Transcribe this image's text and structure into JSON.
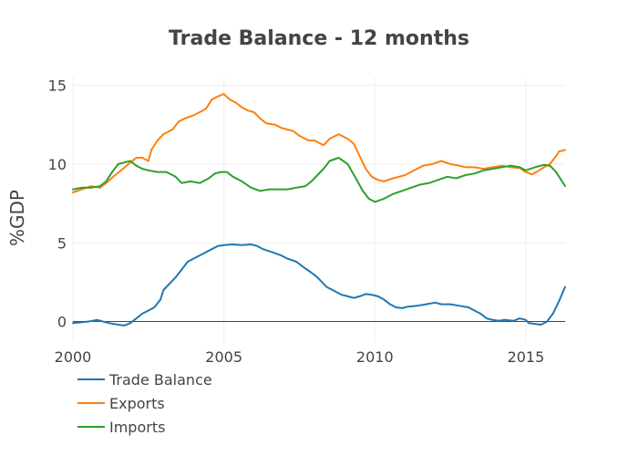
{
  "chart_data": {
    "type": "line",
    "title": "Trade Balance - 12 months",
    "xlabel": "",
    "ylabel": "%GDP",
    "xlim": [
      2000,
      2016.3
    ],
    "ylim": [
      -1.3,
      15.5
    ],
    "x_ticks": [
      2000,
      2005,
      2010,
      2015
    ],
    "x_tick_labels": [
      "2000",
      "2005",
      "2010",
      "2015"
    ],
    "y_ticks": [
      0,
      5,
      10,
      15
    ],
    "y_tick_labels": [
      "0",
      "5",
      "10",
      "15"
    ],
    "grid": true,
    "zero_line": true,
    "legend_position": "bottom-left",
    "series": [
      {
        "name": "Trade Balance",
        "color": "#1f77b4",
        "points": [
          [
            2000.0,
            -0.1
          ],
          [
            2000.5,
            0.0
          ],
          [
            2000.8,
            0.1
          ],
          [
            2001.2,
            -0.1
          ],
          [
            2001.5,
            -0.2
          ],
          [
            2001.7,
            -0.25
          ],
          [
            2001.9,
            -0.1
          ],
          [
            2002.1,
            0.2
          ],
          [
            2002.3,
            0.5
          ],
          [
            2002.5,
            0.7
          ],
          [
            2002.7,
            0.9
          ],
          [
            2002.9,
            1.4
          ],
          [
            2003.0,
            2.0
          ],
          [
            2003.2,
            2.4
          ],
          [
            2003.4,
            2.8
          ],
          [
            2003.6,
            3.3
          ],
          [
            2003.8,
            3.8
          ],
          [
            2004.0,
            4.0
          ],
          [
            2004.2,
            4.2
          ],
          [
            2004.4,
            4.4
          ],
          [
            2004.6,
            4.6
          ],
          [
            2004.8,
            4.8
          ],
          [
            2005.0,
            4.85
          ],
          [
            2005.3,
            4.9
          ],
          [
            2005.6,
            4.85
          ],
          [
            2005.9,
            4.9
          ],
          [
            2006.1,
            4.8
          ],
          [
            2006.3,
            4.6
          ],
          [
            2006.6,
            4.4
          ],
          [
            2006.9,
            4.2
          ],
          [
            2007.1,
            4.0
          ],
          [
            2007.4,
            3.8
          ],
          [
            2007.6,
            3.5
          ],
          [
            2007.9,
            3.1
          ],
          [
            2008.1,
            2.8
          ],
          [
            2008.4,
            2.2
          ],
          [
            2008.6,
            2.0
          ],
          [
            2008.9,
            1.7
          ],
          [
            2009.1,
            1.6
          ],
          [
            2009.3,
            1.5
          ],
          [
            2009.5,
            1.6
          ],
          [
            2009.7,
            1.75
          ],
          [
            2009.9,
            1.7
          ],
          [
            2010.1,
            1.6
          ],
          [
            2010.3,
            1.4
          ],
          [
            2010.5,
            1.1
          ],
          [
            2010.7,
            0.9
          ],
          [
            2010.9,
            0.85
          ],
          [
            2011.1,
            0.95
          ],
          [
            2011.4,
            1.0
          ],
          [
            2011.7,
            1.1
          ],
          [
            2012.0,
            1.2
          ],
          [
            2012.2,
            1.1
          ],
          [
            2012.5,
            1.1
          ],
          [
            2012.8,
            1.0
          ],
          [
            2013.1,
            0.9
          ],
          [
            2013.3,
            0.7
          ],
          [
            2013.5,
            0.5
          ],
          [
            2013.7,
            0.2
          ],
          [
            2013.9,
            0.1
          ],
          [
            2014.1,
            0.05
          ],
          [
            2014.3,
            0.1
          ],
          [
            2014.6,
            0.05
          ],
          [
            2014.8,
            0.2
          ],
          [
            2015.0,
            0.1
          ],
          [
            2015.1,
            -0.1
          ],
          [
            2015.3,
            -0.15
          ],
          [
            2015.5,
            -0.2
          ],
          [
            2015.7,
            0.0
          ],
          [
            2015.9,
            0.5
          ],
          [
            2016.1,
            1.3
          ],
          [
            2016.3,
            2.2
          ]
        ]
      },
      {
        "name": "Exports",
        "color": "#ff7f0e",
        "points": [
          [
            2000.0,
            8.2
          ],
          [
            2000.3,
            8.4
          ],
          [
            2000.6,
            8.6
          ],
          [
            2000.9,
            8.5
          ],
          [
            2001.1,
            8.8
          ],
          [
            2001.4,
            9.3
          ],
          [
            2001.6,
            9.6
          ],
          [
            2001.9,
            10.1
          ],
          [
            2002.1,
            10.4
          ],
          [
            2002.3,
            10.4
          ],
          [
            2002.5,
            10.2
          ],
          [
            2002.6,
            10.9
          ],
          [
            2002.8,
            11.5
          ],
          [
            2003.0,
            11.9
          ],
          [
            2003.3,
            12.2
          ],
          [
            2003.5,
            12.7
          ],
          [
            2003.7,
            12.9
          ],
          [
            2004.0,
            13.1
          ],
          [
            2004.2,
            13.3
          ],
          [
            2004.4,
            13.5
          ],
          [
            2004.6,
            14.1
          ],
          [
            2004.8,
            14.3
          ],
          [
            2005.0,
            14.45
          ],
          [
            2005.2,
            14.1
          ],
          [
            2005.4,
            13.9
          ],
          [
            2005.6,
            13.6
          ],
          [
            2005.8,
            13.4
          ],
          [
            2006.0,
            13.3
          ],
          [
            2006.2,
            12.9
          ],
          [
            2006.4,
            12.6
          ],
          [
            2006.7,
            12.5
          ],
          [
            2006.9,
            12.3
          ],
          [
            2007.1,
            12.2
          ],
          [
            2007.3,
            12.1
          ],
          [
            2007.5,
            11.8
          ],
          [
            2007.8,
            11.5
          ],
          [
            2008.0,
            11.5
          ],
          [
            2008.3,
            11.2
          ],
          [
            2008.5,
            11.6
          ],
          [
            2008.8,
            11.9
          ],
          [
            2009.1,
            11.6
          ],
          [
            2009.3,
            11.3
          ],
          [
            2009.5,
            10.5
          ],
          [
            2009.7,
            9.7
          ],
          [
            2009.9,
            9.2
          ],
          [
            2010.1,
            9.0
          ],
          [
            2010.3,
            8.9
          ],
          [
            2010.6,
            9.1
          ],
          [
            2010.8,
            9.2
          ],
          [
            2011.0,
            9.3
          ],
          [
            2011.3,
            9.6
          ],
          [
            2011.6,
            9.9
          ],
          [
            2011.9,
            10.0
          ],
          [
            2012.2,
            10.2
          ],
          [
            2012.5,
            10.0
          ],
          [
            2012.8,
            9.9
          ],
          [
            2013.0,
            9.8
          ],
          [
            2013.3,
            9.8
          ],
          [
            2013.6,
            9.7
          ],
          [
            2013.9,
            9.8
          ],
          [
            2014.2,
            9.9
          ],
          [
            2014.5,
            9.8
          ],
          [
            2014.8,
            9.75
          ],
          [
            2015.0,
            9.5
          ],
          [
            2015.2,
            9.35
          ],
          [
            2015.4,
            9.55
          ],
          [
            2015.6,
            9.8
          ],
          [
            2015.8,
            10.0
          ],
          [
            2016.0,
            10.5
          ],
          [
            2016.1,
            10.8
          ],
          [
            2016.3,
            10.9
          ]
        ]
      },
      {
        "name": "Imports",
        "color": "#2ca02c",
        "points": [
          [
            2000.0,
            8.4
          ],
          [
            2000.3,
            8.5
          ],
          [
            2000.6,
            8.5
          ],
          [
            2000.9,
            8.6
          ],
          [
            2001.1,
            8.9
          ],
          [
            2001.3,
            9.5
          ],
          [
            2001.5,
            10.0
          ],
          [
            2001.7,
            10.1
          ],
          [
            2001.9,
            10.2
          ],
          [
            2002.1,
            9.9
          ],
          [
            2002.3,
            9.7
          ],
          [
            2002.5,
            9.6
          ],
          [
            2002.8,
            9.5
          ],
          [
            2003.1,
            9.5
          ],
          [
            2003.4,
            9.2
          ],
          [
            2003.6,
            8.8
          ],
          [
            2003.9,
            8.9
          ],
          [
            2004.2,
            8.8
          ],
          [
            2004.5,
            9.1
          ],
          [
            2004.7,
            9.4
          ],
          [
            2004.9,
            9.5
          ],
          [
            2005.1,
            9.5
          ],
          [
            2005.3,
            9.2
          ],
          [
            2005.6,
            8.9
          ],
          [
            2005.9,
            8.5
          ],
          [
            2006.2,
            8.3
          ],
          [
            2006.5,
            8.4
          ],
          [
            2006.8,
            8.4
          ],
          [
            2007.1,
            8.4
          ],
          [
            2007.4,
            8.5
          ],
          [
            2007.7,
            8.6
          ],
          [
            2007.9,
            8.9
          ],
          [
            2008.1,
            9.3
          ],
          [
            2008.3,
            9.7
          ],
          [
            2008.5,
            10.2
          ],
          [
            2008.8,
            10.4
          ],
          [
            2009.1,
            10.0
          ],
          [
            2009.4,
            9.0
          ],
          [
            2009.6,
            8.3
          ],
          [
            2009.8,
            7.8
          ],
          [
            2010.0,
            7.6
          ],
          [
            2010.3,
            7.8
          ],
          [
            2010.6,
            8.1
          ],
          [
            2010.9,
            8.3
          ],
          [
            2011.2,
            8.5
          ],
          [
            2011.5,
            8.7
          ],
          [
            2011.8,
            8.8
          ],
          [
            2012.1,
            9.0
          ],
          [
            2012.4,
            9.2
          ],
          [
            2012.7,
            9.1
          ],
          [
            2013.0,
            9.3
          ],
          [
            2013.3,
            9.4
          ],
          [
            2013.6,
            9.6
          ],
          [
            2013.9,
            9.7
          ],
          [
            2014.2,
            9.8
          ],
          [
            2014.5,
            9.9
          ],
          [
            2014.8,
            9.8
          ],
          [
            2015.0,
            9.6
          ],
          [
            2015.3,
            9.8
          ],
          [
            2015.6,
            9.95
          ],
          [
            2015.8,
            9.9
          ],
          [
            2016.0,
            9.5
          ],
          [
            2016.2,
            8.9
          ],
          [
            2016.3,
            8.6
          ]
        ]
      }
    ]
  }
}
